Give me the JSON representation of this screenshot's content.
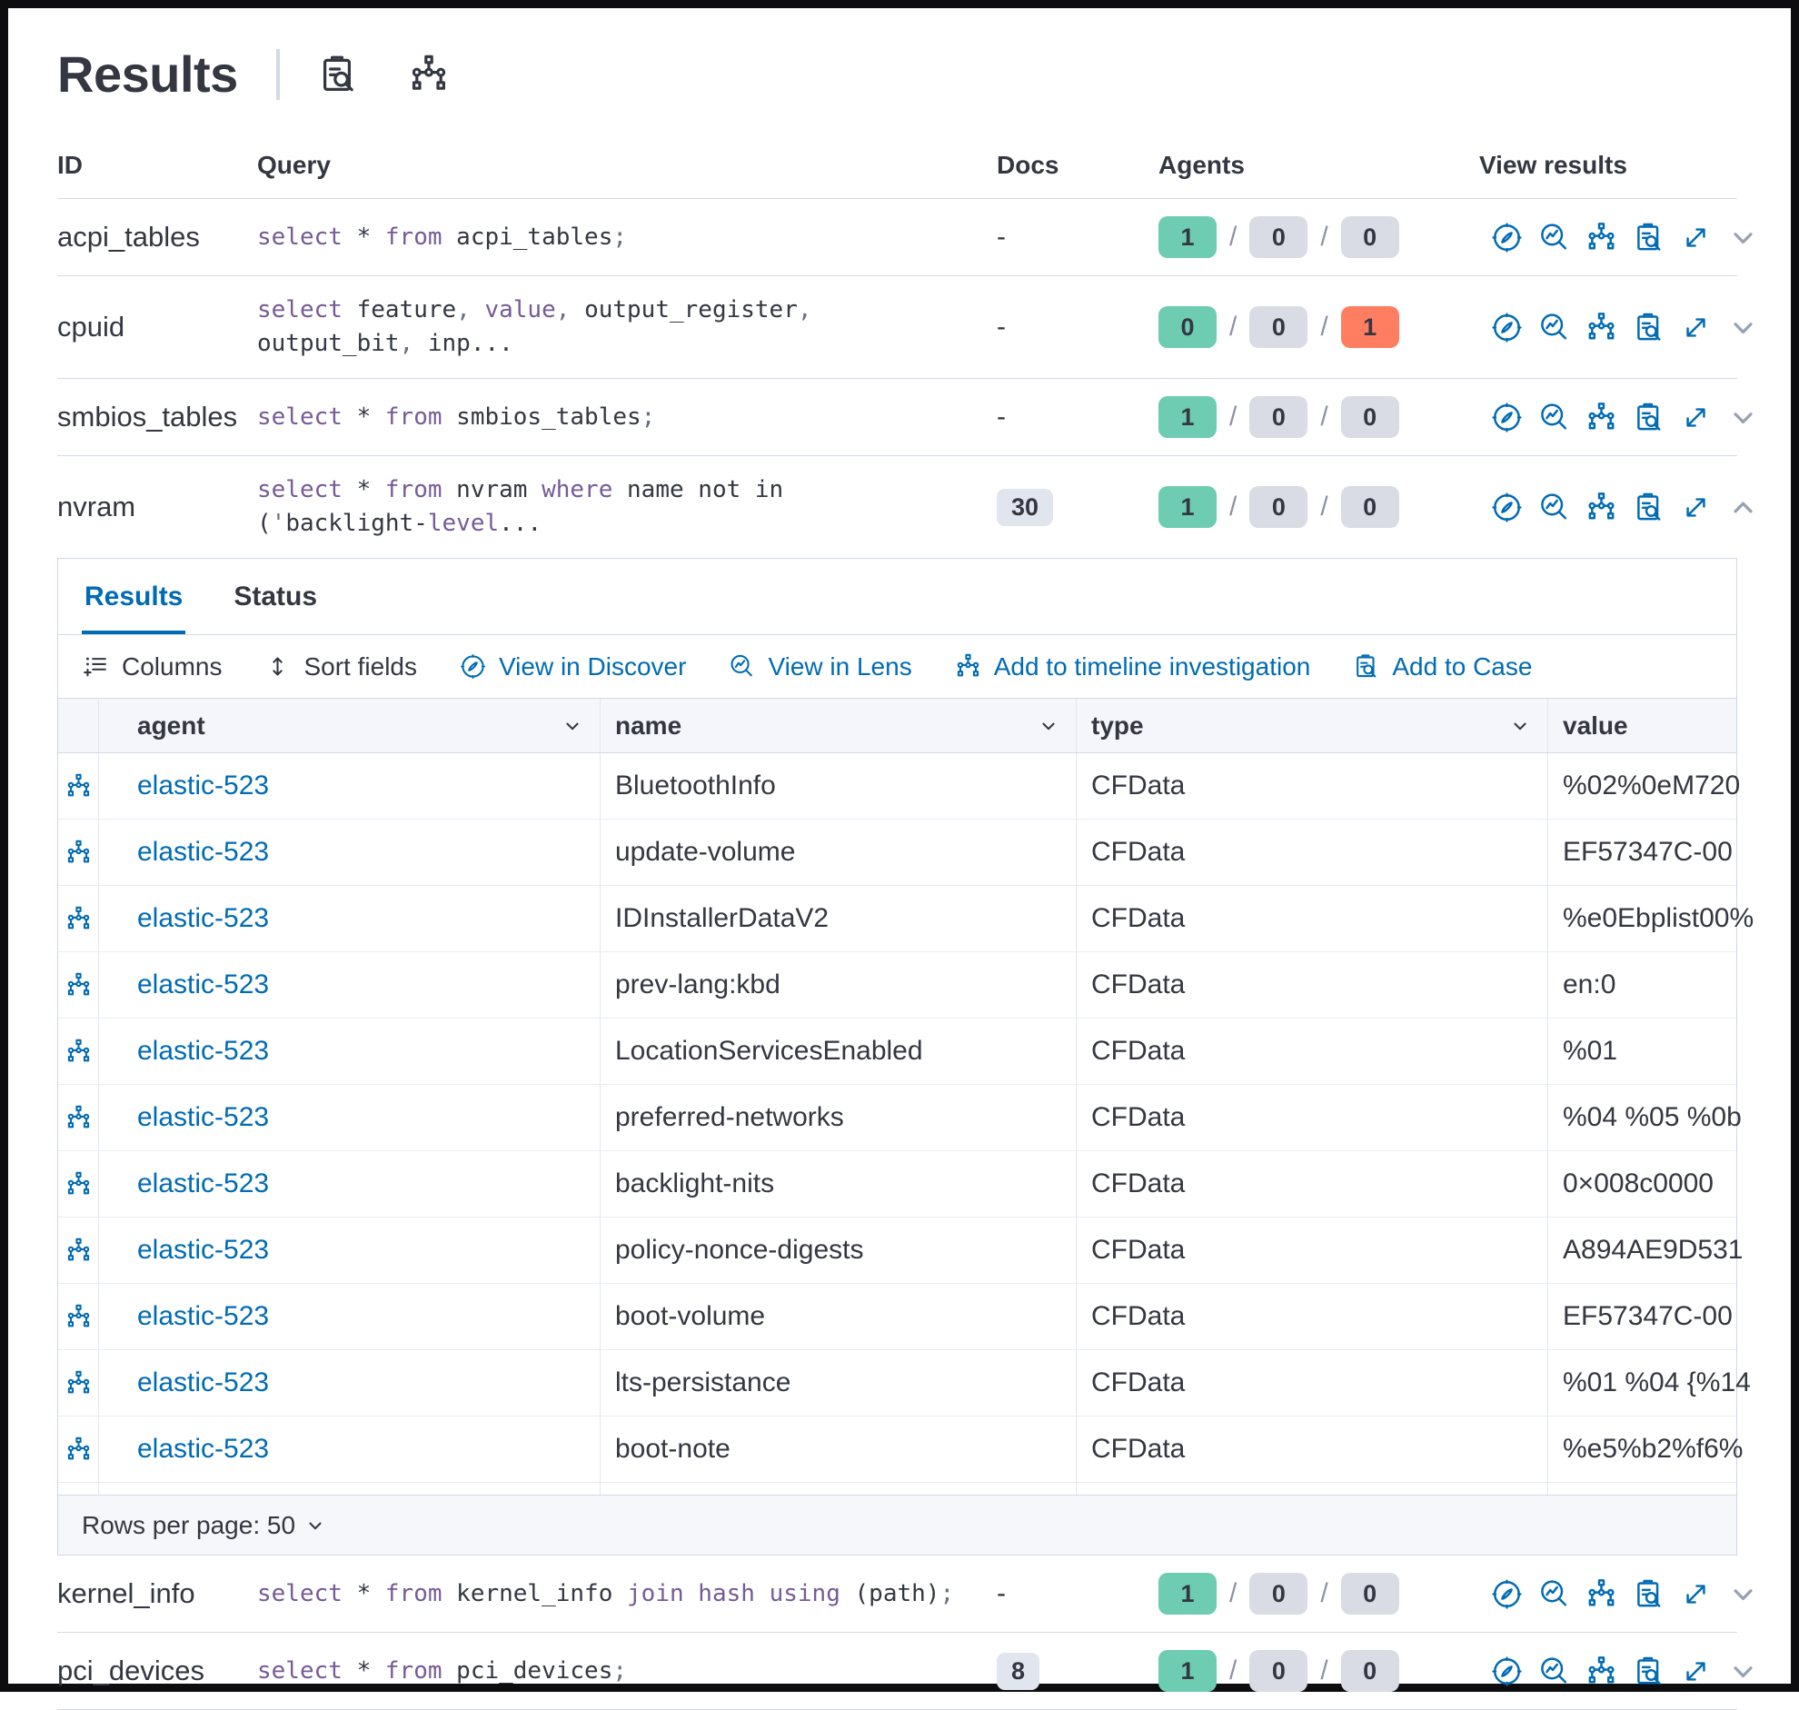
{
  "colors": {
    "accent_blue": "#006BB4",
    "keyword_purple": "#765B96",
    "badge_success": "#6DCCB1",
    "badge_neutral": "#D9DCE5",
    "badge_danger": "#FF7E62",
    "docs_badge_bg": "#E0E5EE"
  },
  "header": {
    "title": "Results",
    "icons": [
      "inspect-icon",
      "node-tree-icon"
    ]
  },
  "results_table": {
    "columns": {
      "id": "ID",
      "query": "Query",
      "docs": "Docs",
      "agents": "Agents",
      "view_results": "View results"
    },
    "view_icon_names": [
      "view-in-discover-icon",
      "view-in-lens-icon",
      "add-to-timeline-icon",
      "add-to-case-icon",
      "expand-icon"
    ],
    "rows_before_panel": [
      {
        "id": "acpi_tables",
        "query_lines": [
          [
            [
              "select",
              "kw"
            ],
            [
              " * ",
              "pl"
            ],
            [
              "from",
              "kw"
            ],
            [
              " acpi_tables",
              "pl"
            ],
            [
              ";",
              "pu"
            ]
          ]
        ],
        "docs": "-",
        "docs_badge": false,
        "agents": [
          [
            "1",
            "success"
          ],
          [
            "0",
            "neutral"
          ],
          [
            "0",
            "neutral"
          ]
        ],
        "chevron": "down",
        "expanded": false
      },
      {
        "id": "cpuid",
        "query_lines": [
          [
            [
              "select",
              "kw"
            ],
            [
              " feature",
              "pl"
            ],
            [
              ", ",
              "pu"
            ],
            [
              "value",
              "kw"
            ],
            [
              ", ",
              "pu"
            ],
            [
              "output_register",
              "pl"
            ],
            [
              ",",
              "pu"
            ]
          ],
          [
            [
              "output_bit",
              "pl"
            ],
            [
              ", ",
              "pu"
            ],
            [
              "inp...",
              "pl"
            ]
          ]
        ],
        "docs": "-",
        "docs_badge": false,
        "agents": [
          [
            "0",
            "success"
          ],
          [
            "0",
            "neutral"
          ],
          [
            "1",
            "danger"
          ]
        ],
        "chevron": "down",
        "expanded": false
      },
      {
        "id": "smbios_tables",
        "query_lines": [
          [
            [
              "select",
              "kw"
            ],
            [
              " * ",
              "pl"
            ],
            [
              "from",
              "kw"
            ],
            [
              " smbios_tables",
              "pl"
            ],
            [
              ";",
              "pu"
            ]
          ]
        ],
        "docs": "-",
        "docs_badge": false,
        "agents": [
          [
            "1",
            "success"
          ],
          [
            "0",
            "neutral"
          ],
          [
            "0",
            "neutral"
          ]
        ],
        "chevron": "down",
        "expanded": false
      },
      {
        "id": "nvram",
        "query_lines": [
          [
            [
              "select",
              "kw"
            ],
            [
              " * ",
              "pl"
            ],
            [
              "from",
              "kw"
            ],
            [
              " nvram ",
              "pl"
            ],
            [
              "where",
              "kw"
            ],
            [
              " name not in",
              "pl"
            ]
          ],
          [
            [
              "(",
              "pl"
            ],
            [
              "'",
              "pu"
            ],
            [
              "backlight-",
              "pl"
            ],
            [
              "level",
              "kw"
            ],
            [
              "...",
              "pl"
            ]
          ]
        ],
        "docs": "30",
        "docs_badge": true,
        "agents": [
          [
            "1",
            "success"
          ],
          [
            "0",
            "neutral"
          ],
          [
            "0",
            "neutral"
          ]
        ],
        "chevron": "up",
        "expanded": true
      }
    ],
    "rows_after_panel": [
      {
        "id": "kernel_info",
        "query_lines": [
          [
            [
              "select",
              "kw"
            ],
            [
              " * ",
              "pl"
            ],
            [
              "from",
              "kw"
            ],
            [
              " kernel_info ",
              "pl"
            ],
            [
              "join",
              "kw"
            ],
            [
              " ",
              "pl"
            ],
            [
              "hash",
              "kw"
            ],
            [
              " ",
              "pl"
            ],
            [
              "using",
              "kw"
            ],
            [
              " (path)",
              "pl"
            ],
            [
              ";",
              "pu"
            ]
          ]
        ],
        "docs": "-",
        "docs_badge": false,
        "agents": [
          [
            "1",
            "success"
          ],
          [
            "0",
            "neutral"
          ],
          [
            "0",
            "neutral"
          ]
        ],
        "chevron": "down",
        "expanded": false
      },
      {
        "id": "pci_devices",
        "query_lines": [
          [
            [
              "select",
              "kw"
            ],
            [
              " * ",
              "pl"
            ],
            [
              "from",
              "kw"
            ],
            [
              " pci_devices",
              "pl"
            ],
            [
              ";",
              "pu"
            ]
          ]
        ],
        "docs": "8",
        "docs_badge": true,
        "agents": [
          [
            "1",
            "success"
          ],
          [
            "0",
            "neutral"
          ],
          [
            "0",
            "neutral"
          ]
        ],
        "chevron": "down",
        "expanded": false
      }
    ]
  },
  "panel": {
    "tabs": [
      {
        "label": "Results",
        "active": true
      },
      {
        "label": "Status",
        "active": false
      }
    ],
    "toolbar": [
      {
        "label": "Columns",
        "icon": "columns-icon",
        "variant": "dark"
      },
      {
        "label": "Sort fields",
        "icon": "sort-fields-icon",
        "variant": "dark"
      },
      {
        "label": "View in Discover",
        "icon": "discover-icon",
        "variant": "link"
      },
      {
        "label": "View in Lens",
        "icon": "lens-icon",
        "variant": "link"
      },
      {
        "label": "Add to timeline investigation",
        "icon": "timeline-icon",
        "variant": "link"
      },
      {
        "label": "Add to Case",
        "icon": "case-icon",
        "variant": "link"
      }
    ],
    "grid": {
      "columns": [
        {
          "label": "agent",
          "sortable": true
        },
        {
          "label": "name",
          "sortable": true
        },
        {
          "label": "type",
          "sortable": true
        },
        {
          "label": "value",
          "sortable": false
        }
      ],
      "rows": [
        {
          "agent": "elastic-523",
          "name": "BluetoothInfo",
          "type": "CFData",
          "value": "%02%0eM720"
        },
        {
          "agent": "elastic-523",
          "name": "update-volume",
          "type": "CFData",
          "value": "EF57347C-00"
        },
        {
          "agent": "elastic-523",
          "name": "IDInstallerDataV2",
          "type": "CFData",
          "value": "%e0Ebplist00%"
        },
        {
          "agent": "elastic-523",
          "name": "prev-lang:kbd",
          "type": "CFData",
          "value": "en:0"
        },
        {
          "agent": "elastic-523",
          "name": "LocationServicesEnabled",
          "type": "CFData",
          "value": "%01"
        },
        {
          "agent": "elastic-523",
          "name": "preferred-networks",
          "type": "CFData",
          "value": "%04 %05 %0b"
        },
        {
          "agent": "elastic-523",
          "name": "backlight-nits",
          "type": "CFData",
          "value": "0×008c0000"
        },
        {
          "agent": "elastic-523",
          "name": "policy-nonce-digests",
          "type": "CFData",
          "value": "A894AE9D531"
        },
        {
          "agent": "elastic-523",
          "name": "boot-volume",
          "type": "CFData",
          "value": "EF57347C-00"
        },
        {
          "agent": "elastic-523",
          "name": "lts-persistance",
          "type": "CFData",
          "value": "%01 %04 {%14"
        },
        {
          "agent": "elastic-523",
          "name": "boot-note",
          "type": "CFData",
          "value": "%e5%b2%f6%"
        }
      ],
      "footer": {
        "rows_per_page_label": "Rows per page: 50"
      }
    }
  }
}
